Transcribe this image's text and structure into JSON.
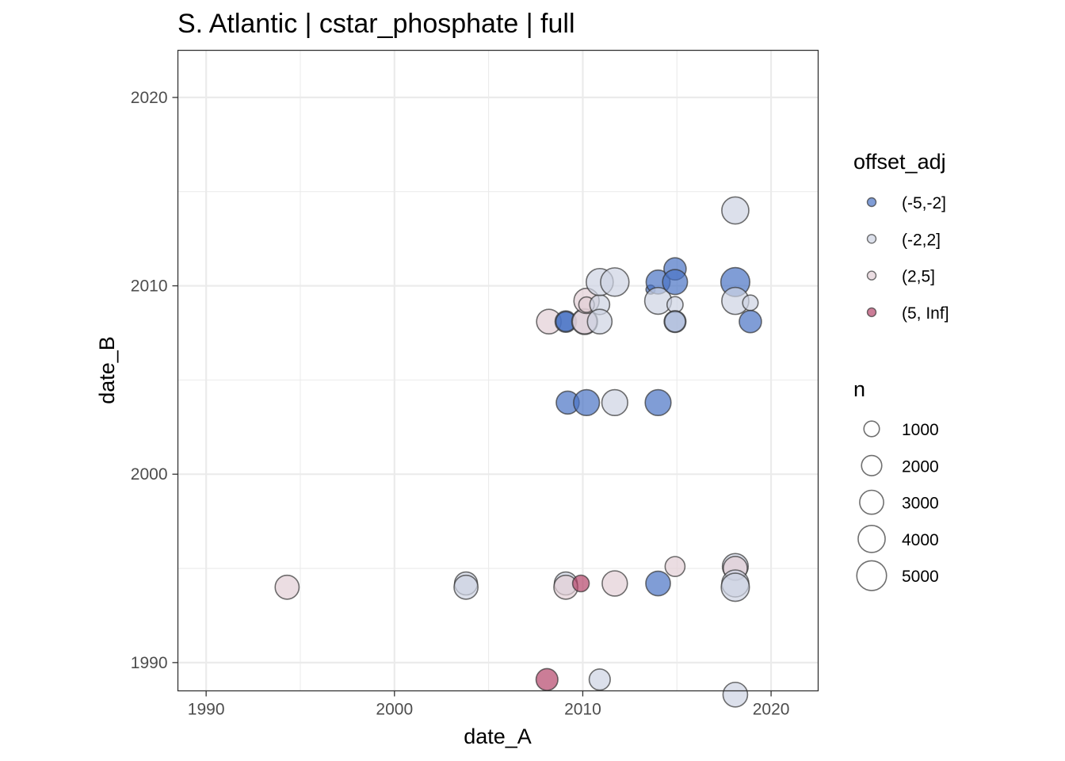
{
  "chart_data": {
    "type": "scatter",
    "title": "S. Atlantic | cstar_phosphate | full",
    "xlabel": "date_A",
    "ylabel": "date_B",
    "xlim": [
      1988.5,
      2022.5
    ],
    "ylim": [
      1988.5,
      2022.5
    ],
    "x_ticks": [
      1990,
      2000,
      2010,
      2020
    ],
    "y_ticks": [
      1990,
      2000,
      2010,
      2020
    ],
    "grid": true,
    "legend_position": "right",
    "color_legend": {
      "title": "offset_adj",
      "entries": [
        {
          "label": "(-5,-2]",
          "color": "#4a74c4"
        },
        {
          "label": "(-2,2]",
          "color": "#cdd3e2"
        },
        {
          "label": "(2,5]",
          "color": "#e2cfd5"
        },
        {
          "label": "(5, Inf]",
          "color": "#b5466b"
        }
      ]
    },
    "size_legend": {
      "title": "n",
      "entries": [
        {
          "label": "1000",
          "value": 1000
        },
        {
          "label": "2000",
          "value": 2000
        },
        {
          "label": "3000",
          "value": 3000
        },
        {
          "label": "4000",
          "value": 4000
        },
        {
          "label": "5000",
          "value": 5000
        }
      ]
    },
    "points": [
      {
        "x": 1994.3,
        "y": 1994.0,
        "n": 3000,
        "cls": "(2,5]"
      },
      {
        "x": 2003.8,
        "y": 1994.2,
        "n": 2700,
        "cls": "(-2,2]"
      },
      {
        "x": 2003.8,
        "y": 1994.0,
        "n": 3000,
        "cls": "(-2,2]"
      },
      {
        "x": 2008.1,
        "y": 1989.1,
        "n": 2400,
        "cls": "(5, Inf]"
      },
      {
        "x": 2009.1,
        "y": 1994.2,
        "n": 2700,
        "cls": "(-2,2]"
      },
      {
        "x": 2009.1,
        "y": 1994.0,
        "n": 3000,
        "cls": "(2,5]"
      },
      {
        "x": 2009.9,
        "y": 1994.2,
        "n": 1200,
        "cls": "(5, Inf]"
      },
      {
        "x": 2010.9,
        "y": 1989.1,
        "n": 2200,
        "cls": "(-2,2]"
      },
      {
        "x": 2011.7,
        "y": 1994.2,
        "n": 3400,
        "cls": "(2,5]"
      },
      {
        "x": 2014.0,
        "y": 1994.2,
        "n": 3200,
        "cls": "(-5,-2]"
      },
      {
        "x": 2014.9,
        "y": 1995.1,
        "n": 1900,
        "cls": "(2,5]"
      },
      {
        "x": 2018.1,
        "y": 1995.1,
        "n": 3600,
        "cls": "(-2,2]"
      },
      {
        "x": 2018.1,
        "y": 1995.0,
        "n": 3000,
        "cls": "(2,5]"
      },
      {
        "x": 2018.1,
        "y": 1994.2,
        "n": 4000,
        "cls": "(-2,2]"
      },
      {
        "x": 2018.1,
        "y": 1994.0,
        "n": 4400,
        "cls": "(-2,2]"
      },
      {
        "x": 2018.1,
        "y": 1988.3,
        "n": 3200,
        "cls": "(-2,2]"
      },
      {
        "x": 2009.2,
        "y": 2003.8,
        "n": 2700,
        "cls": "(-5,-2]"
      },
      {
        "x": 2010.2,
        "y": 2003.8,
        "n": 3600,
        "cls": "(-5,-2]"
      },
      {
        "x": 2011.7,
        "y": 2003.8,
        "n": 3600,
        "cls": "(-2,2]"
      },
      {
        "x": 2014.0,
        "y": 2003.8,
        "n": 3600,
        "cls": "(-5,-2]"
      },
      {
        "x": 2008.2,
        "y": 2008.1,
        "n": 3200,
        "cls": "(2,5]"
      },
      {
        "x": 2009.1,
        "y": 2008.1,
        "n": 2300,
        "cls": "(-5,-2]"
      },
      {
        "x": 2009.1,
        "y": 2008.1,
        "n": 1900,
        "cls": "(-5,-2]"
      },
      {
        "x": 2010.1,
        "y": 2008.1,
        "n": 3600,
        "cls": "(-2,2]"
      },
      {
        "x": 2010.1,
        "y": 2008.1,
        "n": 3200,
        "cls": "(2,5]"
      },
      {
        "x": 2010.2,
        "y": 2009.2,
        "n": 3400,
        "cls": "(2,5]"
      },
      {
        "x": 2010.2,
        "y": 2009.0,
        "n": 1000,
        "cls": "(2,5]"
      },
      {
        "x": 2010.9,
        "y": 2009.0,
        "n": 1900,
        "cls": "(-2,2]"
      },
      {
        "x": 2010.9,
        "y": 2008.1,
        "n": 3200,
        "cls": "(-2,2]"
      },
      {
        "x": 2010.9,
        "y": 2010.2,
        "n": 4000,
        "cls": "(-2,2]"
      },
      {
        "x": 2011.7,
        "y": 2010.2,
        "n": 4500,
        "cls": "(-2,2]"
      },
      {
        "x": 2013.6,
        "y": 2009.8,
        "n": 200,
        "cls": "(-5,-2]"
      },
      {
        "x": 2014.0,
        "y": 2010.2,
        "n": 3000,
        "cls": "(-5,-2]"
      },
      {
        "x": 2014.0,
        "y": 2009.2,
        "n": 3900,
        "cls": "(-2,2]"
      },
      {
        "x": 2014.9,
        "y": 2010.9,
        "n": 2500,
        "cls": "(-5,-2]"
      },
      {
        "x": 2014.9,
        "y": 2010.2,
        "n": 3300,
        "cls": "(-5,-2]"
      },
      {
        "x": 2014.9,
        "y": 2009.0,
        "n": 1100,
        "cls": "(-2,2]"
      },
      {
        "x": 2014.9,
        "y": 2008.1,
        "n": 2400,
        "cls": "(-5,-2]"
      },
      {
        "x": 2014.9,
        "y": 2008.1,
        "n": 2100,
        "cls": "(-2,2]"
      },
      {
        "x": 2018.1,
        "y": 2014.0,
        "n": 4000,
        "cls": "(-2,2]"
      },
      {
        "x": 2018.1,
        "y": 2010.2,
        "n": 4700,
        "cls": "(-5,-2]"
      },
      {
        "x": 2018.1,
        "y": 2009.2,
        "n": 4000,
        "cls": "(-2,2]"
      },
      {
        "x": 2018.9,
        "y": 2009.1,
        "n": 1000,
        "cls": "(-2,2]"
      },
      {
        "x": 2018.9,
        "y": 2008.1,
        "n": 2500,
        "cls": "(-5,-2]"
      }
    ]
  }
}
